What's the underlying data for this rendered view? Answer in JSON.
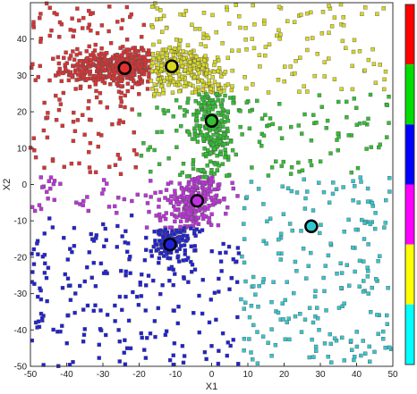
{
  "chart_data": {
    "type": "scatter",
    "title": "",
    "xlabel": "X1",
    "ylabel": "X2",
    "xlim": [
      -50,
      50
    ],
    "ylim": [
      -50,
      50
    ],
    "xticks": [
      -50,
      -40,
      -30,
      -20,
      -10,
      0,
      10,
      20,
      30,
      40,
      50
    ],
    "yticks": [
      -50,
      -40,
      -30,
      -20,
      -10,
      0,
      10,
      20,
      30,
      40
    ],
    "grid": false,
    "legend": "none",
    "marker": "square",
    "clusters": [
      {
        "color": "#e03030",
        "center": [
          -24,
          32
        ]
      },
      {
        "color": "#d8d820",
        "center": [
          -11,
          32.5
        ]
      },
      {
        "color": "#30c030",
        "center": [
          0,
          17.5
        ]
      },
      {
        "color": "#c030e0",
        "center": [
          -4,
          -4.5
        ]
      },
      {
        "color": "#2020d8",
        "center": [
          -11.5,
          -16.5
        ]
      },
      {
        "color": "#30c8d0",
        "center": [
          27.5,
          -11.5
        ]
      }
    ],
    "colorbar": {
      "colors": [
        "#ff0000",
        "#00dd00",
        "#0000ff",
        "#ff00ff",
        "#ffff00",
        "#00ffff"
      ],
      "order": "top-to-bottom"
    }
  }
}
